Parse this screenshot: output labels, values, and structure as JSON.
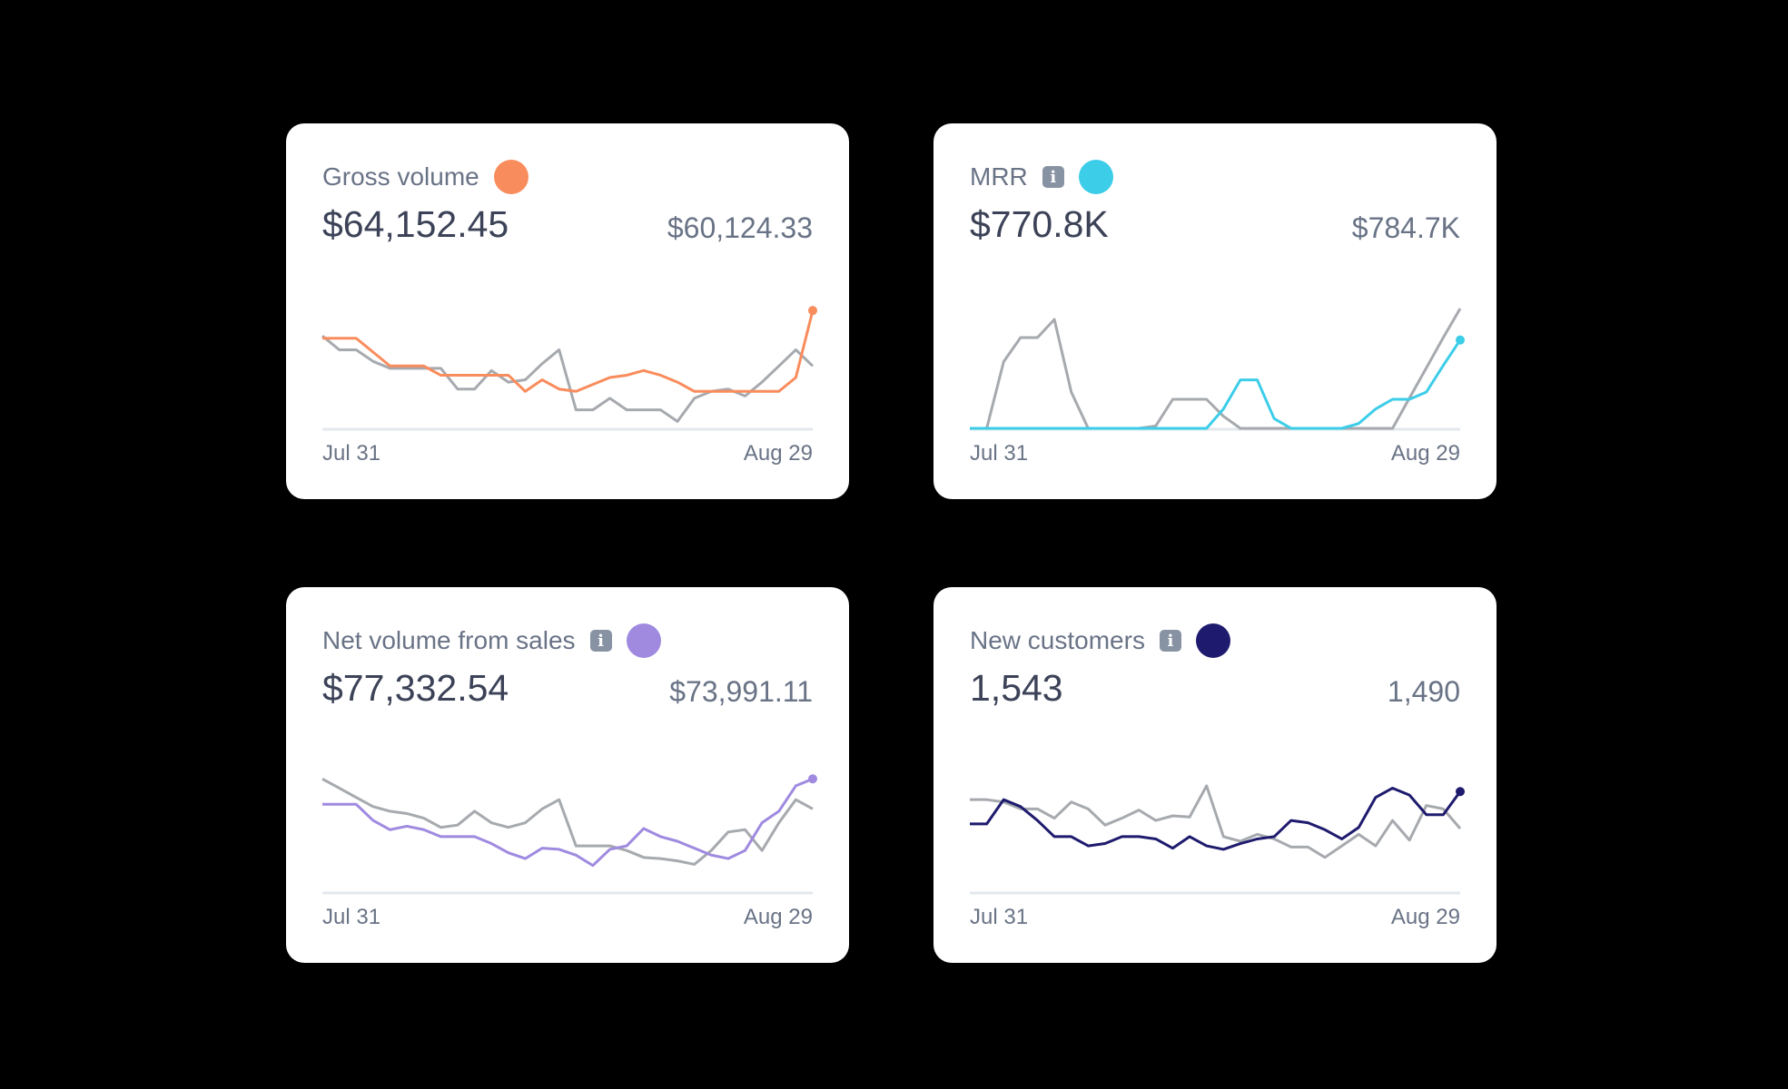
{
  "cards": [
    {
      "title": "Gross volume",
      "info": false,
      "value": "$64,152.45",
      "previous": "$60,124.33",
      "color": "#f98c5c"
    },
    {
      "title": "MRR",
      "info": true,
      "value": "$770.8K",
      "previous": "$784.7K",
      "color": "#3ccde9"
    },
    {
      "title": "Net volume from sales",
      "info": true,
      "value": "$77,332.54",
      "previous": "$73,991.11",
      "color": "#9f8ae0"
    },
    {
      "title": "New customers",
      "info": true,
      "value": "1,543",
      "previous": "1,490",
      "color": "#1e1b6e"
    }
  ],
  "info_icon": "info-icon",
  "comparison_color": "#a6a9ae",
  "chart_data": [
    {
      "type": "line",
      "title": "Gross volume",
      "x_ticks": [
        "Jul 31",
        "Aug 29"
      ],
      "ylim": [
        0,
        110
      ],
      "grid": false,
      "series": [
        {
          "role": "current",
          "color": "#f98c5c",
          "values": [
            78,
            78,
            78,
            66,
            54,
            54,
            54,
            46,
            46,
            46,
            46,
            46,
            32,
            42,
            34,
            32,
            38,
            44,
            46,
            50,
            46,
            40,
            32,
            32,
            32,
            32,
            32,
            32,
            44,
            102
          ]
        },
        {
          "role": "previous",
          "color": "#a6a9ae",
          "values": [
            80,
            68,
            68,
            58,
            52,
            52,
            52,
            52,
            34,
            34,
            50,
            40,
            42,
            56,
            68,
            16,
            16,
            26,
            16,
            16,
            16,
            6,
            26,
            32,
            34,
            28,
            40,
            54,
            68,
            54
          ]
        }
      ]
    },
    {
      "type": "line",
      "title": "MRR",
      "x_ticks": [
        "Jul 31",
        "Aug 29"
      ],
      "ylim": [
        0,
        105
      ],
      "grid": false,
      "series": [
        {
          "role": "current",
          "color": "#3ccde9",
          "values": [
            0,
            0,
            0,
            0,
            0,
            0,
            0,
            0,
            0,
            0,
            0,
            0,
            0,
            0,
            0,
            16,
            40,
            40,
            8,
            0,
            0,
            0,
            0,
            4,
            16,
            24,
            24,
            30,
            52,
            73
          ]
        },
        {
          "role": "previous",
          "color": "#a6a9ae",
          "values": [
            0,
            0,
            55,
            75,
            75,
            90,
            30,
            0,
            0,
            0,
            0,
            2,
            24,
            24,
            24,
            10,
            0,
            0,
            0,
            0,
            0,
            0,
            0,
            0,
            0,
            0,
            25,
            50,
            75,
            99
          ]
        }
      ]
    },
    {
      "type": "line",
      "title": "Net volume from sales",
      "x_ticks": [
        "Jul 31",
        "Aug 29"
      ],
      "ylim": [
        0,
        110
      ],
      "grid": false,
      "series": [
        {
          "role": "current",
          "color": "#9f8ae0",
          "values": [
            76,
            76,
            76,
            62,
            54,
            57,
            54,
            48,
            48,
            48,
            42,
            34,
            29,
            38,
            37,
            32,
            23,
            37,
            40,
            55,
            48,
            44,
            38,
            32,
            29,
            36,
            60,
            70,
            92,
            98
          ]
        },
        {
          "role": "previous",
          "color": "#a6a9ae",
          "values": [
            98,
            90,
            82,
            74,
            70,
            68,
            64,
            56,
            58,
            70,
            60,
            56,
            60,
            72,
            80,
            40,
            40,
            40,
            36,
            30,
            29,
            27,
            24,
            36,
            52,
            54,
            36,
            60,
            80,
            72
          ]
        }
      ]
    },
    {
      "type": "line",
      "title": "New customers",
      "x_ticks": [
        "Jul 31",
        "Aug 29"
      ],
      "ylim": [
        0,
        110
      ],
      "grid": false,
      "series": [
        {
          "role": "current",
          "color": "#1e1b6e",
          "values": [
            59,
            59,
            80,
            74,
            62,
            48,
            48,
            40,
            42,
            48,
            48,
            46,
            38,
            48,
            40,
            37,
            42,
            46,
            48,
            62,
            60,
            54,
            46,
            56,
            82,
            90,
            84,
            67,
            67,
            87
          ]
        },
        {
          "role": "previous",
          "color": "#a6a9ae",
          "values": [
            80,
            80,
            78,
            72,
            72,
            64,
            78,
            72,
            58,
            64,
            71,
            62,
            66,
            65,
            92,
            48,
            44,
            50,
            46,
            39,
            39,
            30,
            40,
            50,
            40,
            62,
            45,
            75,
            72,
            55
          ]
        }
      ]
    }
  ]
}
